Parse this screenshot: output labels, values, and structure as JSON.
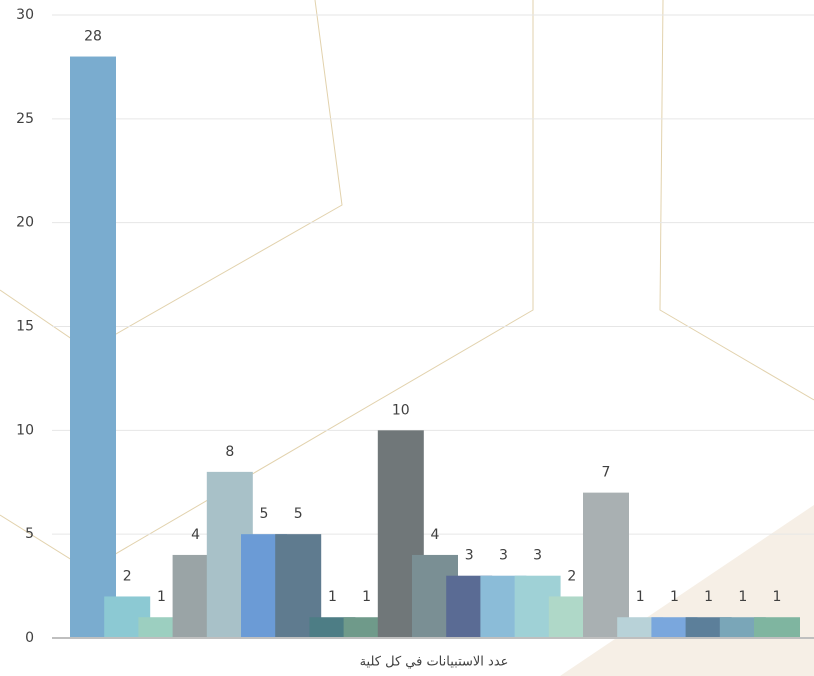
{
  "chart_data": {
    "type": "bar",
    "x_label": "عدد الاستبيانات في كل كلية",
    "values": [
      28,
      2,
      1,
      4,
      8,
      5,
      5,
      1,
      1,
      10,
      4,
      3,
      3,
      3,
      2,
      7,
      1,
      1,
      1,
      1,
      1
    ],
    "colors": [
      "#7aaccf",
      "#8cc9d3",
      "#9ccfc0",
      "#9aa4a6",
      "#a8c1c8",
      "#6b9bd6",
      "#5f7b8f",
      "#4d7d85",
      "#6f9a8a",
      "#707779",
      "#7a8f94",
      "#5a6b94",
      "#8bbcd8",
      "#9fd1d6",
      "#afd8c8",
      "#a9b0b2",
      "#b8d2d8",
      "#7aa7dd",
      "#5c7f9a",
      "#7aa6b8",
      "#7fb5a0"
    ],
    "ylim": [
      0,
      30
    ],
    "yticks": [
      0,
      5,
      10,
      15,
      20,
      25,
      30
    ],
    "grid": true
  }
}
